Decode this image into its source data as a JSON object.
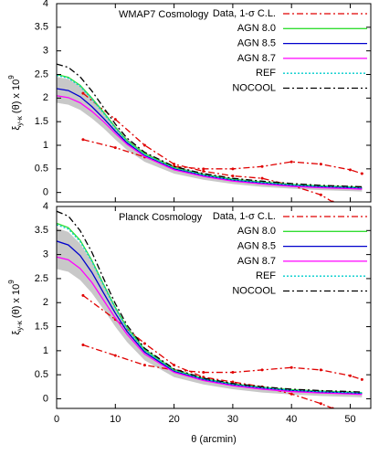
{
  "chart_data": [
    {
      "type": "line",
      "title": "WMAP7 Cosmology",
      "ylabel": {
        "symbol": "ξ",
        "subscript": "y-κ",
        "body": "(θ) x 10",
        "superscript": "9"
      },
      "xlim": [
        0,
        53.5
      ],
      "ylim": [
        -0.2,
        4
      ],
      "xticks": [
        0,
        10,
        20,
        30,
        40,
        50
      ],
      "show_xtick_labels": false,
      "yticks": [
        0,
        0.5,
        1,
        1.5,
        2,
        2.5,
        3,
        3.5,
        4
      ],
      "legend": "upper right",
      "band": {
        "color": "#c8c8c8",
        "x": [
          0,
          2,
          4,
          6,
          8,
          10,
          12,
          15,
          20,
          25,
          30,
          35,
          40,
          45,
          50,
          52
        ],
        "upper": [
          2.45,
          2.4,
          2.25,
          2.0,
          1.72,
          1.42,
          1.14,
          0.85,
          0.56,
          0.41,
          0.3,
          0.23,
          0.18,
          0.15,
          0.12,
          0.11
        ],
        "lower": [
          1.9,
          1.86,
          1.75,
          1.57,
          1.36,
          1.12,
          0.9,
          0.65,
          0.4,
          0.27,
          0.18,
          0.12,
          0.08,
          0.05,
          0.03,
          0.02
        ]
      },
      "data": {
        "name": "Data, 1-σ C.L.",
        "color": "#e00000",
        "style": "dashdot",
        "x": [
          4.5,
          10,
          15,
          20,
          25,
          30,
          35,
          40,
          45,
          47
        ],
        "line_a": [
          2.1,
          1.55,
          1.0,
          0.6,
          0.45,
          0.35,
          0.3,
          0.15,
          -0.05,
          -0.2
        ],
        "x_b": [
          4.5,
          10,
          15,
          20,
          25,
          30,
          35,
          40,
          45,
          50,
          52
        ],
        "line_b": [
          1.12,
          0.95,
          0.75,
          0.55,
          0.5,
          0.5,
          0.55,
          0.65,
          0.6,
          0.48,
          0.4
        ]
      },
      "x": [
        0,
        2,
        4,
        6,
        8,
        10,
        12,
        15,
        20,
        25,
        30,
        35,
        40,
        45,
        50,
        52
      ],
      "series": [
        {
          "name": "AGN 8.0",
          "color": "#33dd33",
          "style": "solid",
          "values": [
            2.5,
            2.44,
            2.27,
            2.0,
            1.7,
            1.38,
            1.1,
            0.82,
            0.53,
            0.38,
            0.28,
            0.22,
            0.17,
            0.14,
            0.12,
            0.11
          ]
        },
        {
          "name": "AGN 8.5",
          "color": "#0000cc",
          "style": "solid",
          "values": [
            2.2,
            2.16,
            2.03,
            1.82,
            1.57,
            1.3,
            1.05,
            0.78,
            0.5,
            0.36,
            0.26,
            0.2,
            0.15,
            0.12,
            0.1,
            0.09
          ]
        },
        {
          "name": "AGN 8.7",
          "color": "#ff00ff",
          "style": "solid",
          "values": [
            2.05,
            2.01,
            1.9,
            1.72,
            1.5,
            1.25,
            1.02,
            0.76,
            0.48,
            0.34,
            0.24,
            0.18,
            0.13,
            0.1,
            0.08,
            0.07
          ]
        },
        {
          "name": "REF",
          "color": "#00cccc",
          "style": "dotted",
          "values": [
            2.48,
            2.42,
            2.25,
            1.98,
            1.68,
            1.36,
            1.08,
            0.8,
            0.52,
            0.37,
            0.27,
            0.21,
            0.16,
            0.13,
            0.11,
            0.1
          ]
        },
        {
          "name": "NOCOOL",
          "color": "#000000",
          "style": "dashdot",
          "values": [
            2.72,
            2.65,
            2.45,
            2.15,
            1.8,
            1.45,
            1.15,
            0.85,
            0.55,
            0.4,
            0.3,
            0.24,
            0.19,
            0.15,
            0.13,
            0.12
          ]
        }
      ]
    },
    {
      "type": "line",
      "title": "Planck Cosmology",
      "ylabel": {
        "symbol": "ξ",
        "subscript": "y-κ",
        "body": "(θ) x 10",
        "superscript": "9"
      },
      "xlabel": "θ (arcmin)",
      "xlim": [
        0,
        53.5
      ],
      "ylim": [
        -0.2,
        4
      ],
      "xticks": [
        0,
        10,
        20,
        30,
        40,
        50
      ],
      "show_xtick_labels": true,
      "yticks": [
        0,
        0.5,
        1,
        1.5,
        2,
        2.5,
        3,
        3.5,
        4
      ],
      "legend": "upper right",
      "band": {
        "color": "#c8c8c8",
        "x": [
          0,
          2,
          4,
          6,
          8,
          10,
          12,
          15,
          20,
          25,
          30,
          35,
          40,
          45,
          50,
          52
        ],
        "upper": [
          3.55,
          3.47,
          3.23,
          2.85,
          2.38,
          1.92,
          1.5,
          1.05,
          0.63,
          0.44,
          0.32,
          0.25,
          0.2,
          0.17,
          0.15,
          0.14
        ],
        "lower": [
          2.7,
          2.64,
          2.47,
          2.2,
          1.86,
          1.5,
          1.18,
          0.8,
          0.45,
          0.3,
          0.2,
          0.13,
          0.09,
          0.06,
          0.04,
          0.03
        ]
      },
      "data": {
        "name": "Data, 1-σ C.L.",
        "color": "#e00000",
        "style": "dashdot",
        "x": [
          4.5,
          10,
          15,
          20,
          25,
          30,
          35,
          40,
          45,
          47
        ],
        "line_a": [
          2.15,
          1.65,
          1.15,
          0.7,
          0.45,
          0.35,
          0.25,
          0.1,
          -0.1,
          -0.2
        ],
        "x_b": [
          4.5,
          10,
          15,
          20,
          25,
          30,
          35,
          40,
          45,
          50,
          52
        ],
        "line_b": [
          1.12,
          0.9,
          0.7,
          0.6,
          0.55,
          0.55,
          0.6,
          0.65,
          0.6,
          0.48,
          0.4
        ]
      },
      "x": [
        0,
        2,
        4,
        6,
        8,
        10,
        12,
        15,
        20,
        25,
        30,
        35,
        40,
        45,
        50,
        52
      ],
      "series": [
        {
          "name": "AGN 8.0",
          "color": "#33dd33",
          "style": "solid",
          "values": [
            3.65,
            3.56,
            3.3,
            2.88,
            2.38,
            1.9,
            1.48,
            1.02,
            0.6,
            0.42,
            0.31,
            0.24,
            0.19,
            0.16,
            0.14,
            0.13
          ]
        },
        {
          "name": "AGN 8.5",
          "color": "#0000cc",
          "style": "solid",
          "values": [
            3.28,
            3.2,
            2.98,
            2.63,
            2.2,
            1.78,
            1.4,
            0.97,
            0.57,
            0.4,
            0.29,
            0.22,
            0.17,
            0.14,
            0.12,
            0.11
          ]
        },
        {
          "name": "AGN 8.7",
          "color": "#ff00ff",
          "style": "solid",
          "values": [
            2.95,
            2.89,
            2.71,
            2.42,
            2.05,
            1.68,
            1.34,
            0.93,
            0.55,
            0.38,
            0.27,
            0.2,
            0.15,
            0.12,
            0.1,
            0.09
          ]
        },
        {
          "name": "REF",
          "color": "#00cccc",
          "style": "dotted",
          "values": [
            3.62,
            3.53,
            3.27,
            2.86,
            2.36,
            1.88,
            1.46,
            1.0,
            0.59,
            0.41,
            0.3,
            0.23,
            0.18,
            0.15,
            0.13,
            0.12
          ]
        },
        {
          "name": "NOCOOL",
          "color": "#000000",
          "style": "dashdot",
          "values": [
            3.9,
            3.8,
            3.5,
            3.05,
            2.5,
            1.98,
            1.53,
            1.05,
            0.62,
            0.43,
            0.32,
            0.25,
            0.2,
            0.17,
            0.15,
            0.14
          ]
        }
      ]
    }
  ]
}
